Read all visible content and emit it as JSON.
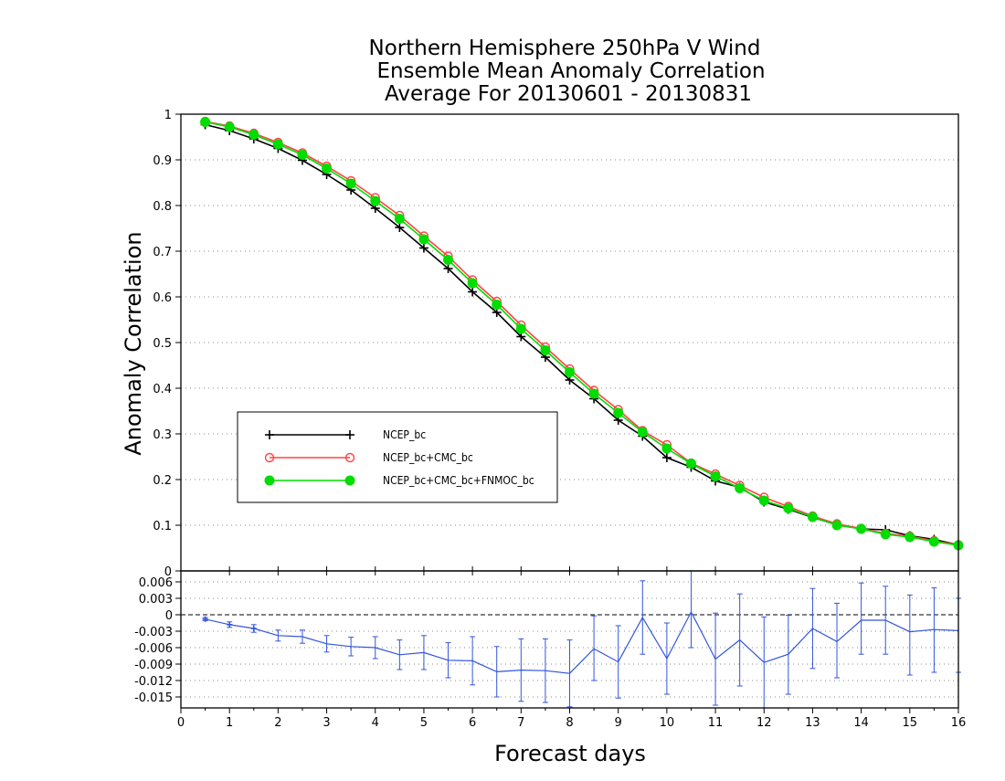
{
  "chart_data": [
    {
      "type": "line",
      "title_lines": [
        "Northern Hemisphere 250hPa V Wind",
        "Ensemble Mean Anomaly Correlation",
        "Average For 20130601 - 20130831"
      ],
      "xlabel": "Forecast days",
      "ylabel": "Anomaly Correlation",
      "xlim": [
        0,
        16
      ],
      "ylim": [
        0,
        1
      ],
      "x_ticks": [
        "0",
        "1",
        "2",
        "3",
        "4",
        "5",
        "6",
        "7",
        "8",
        "9",
        "10",
        "11",
        "12",
        "13",
        "14",
        "15",
        "16"
      ],
      "y_ticks": [
        "0",
        "0.1",
        "0.2",
        "0.3",
        "0.4",
        "0.5",
        "0.6",
        "0.7",
        "0.8",
        "0.9",
        "1"
      ],
      "grid": "horizontal dotted",
      "legend_position": "lower-left",
      "x": [
        0.5,
        1,
        1.5,
        2,
        2.5,
        3,
        3.5,
        4,
        4.5,
        5,
        5.5,
        6,
        6.5,
        7,
        7.5,
        8,
        8.5,
        9,
        9.5,
        10,
        10.5,
        11,
        11.5,
        12,
        12.5,
        13,
        13.5,
        14,
        14.5,
        15,
        15.5,
        16
      ],
      "series": [
        {
          "name": "NCEP_bc",
          "color": "#000000",
          "marker": "plus",
          "values": [
            0.977,
            0.964,
            0.946,
            0.925,
            0.899,
            0.868,
            0.834,
            0.794,
            0.752,
            0.707,
            0.662,
            0.611,
            0.566,
            0.513,
            0.468,
            0.418,
            0.377,
            0.33,
            0.295,
            0.248,
            0.227,
            0.197,
            0.183,
            0.151,
            0.135,
            0.117,
            0.101,
            0.092,
            0.09,
            0.077,
            0.069,
            0.057
          ]
        },
        {
          "name": "NCEP_bc+CMC_bc",
          "color": "#ff4444",
          "marker": "open-circle",
          "values": [
            0.984,
            0.974,
            0.958,
            0.938,
            0.915,
            0.886,
            0.854,
            0.817,
            0.778,
            0.733,
            0.689,
            0.637,
            0.59,
            0.538,
            0.49,
            0.442,
            0.395,
            0.353,
            0.307,
            0.276,
            0.236,
            0.212,
            0.187,
            0.161,
            0.141,
            0.12,
            0.103,
            0.093,
            0.082,
            0.076,
            0.066,
            0.057
          ]
        },
        {
          "name": "NCEP_bc+CMC_bc+FNMOC_bc",
          "color": "#00dd00",
          "marker": "filled-circle",
          "values": [
            0.983,
            0.972,
            0.955,
            0.934,
            0.911,
            0.881,
            0.848,
            0.81,
            0.771,
            0.726,
            0.681,
            0.63,
            0.583,
            0.53,
            0.483,
            0.435,
            0.388,
            0.346,
            0.304,
            0.268,
            0.235,
            0.207,
            0.181,
            0.154,
            0.137,
            0.118,
            0.1,
            0.092,
            0.08,
            0.074,
            0.064,
            0.056
          ]
        }
      ]
    },
    {
      "type": "line",
      "subtype": "difference with error bars",
      "xlim": [
        0,
        16
      ],
      "ylim": [
        -0.017,
        0.008
      ],
      "y_ticks": [
        "0.006",
        "0.003",
        "0",
        "-0.003",
        "-0.006",
        "-0.009",
        "-0.012",
        "-0.015"
      ],
      "grid": "horizontal dotted",
      "zero_line": "dashed",
      "x": [
        0.5,
        1,
        1.5,
        2,
        2.5,
        3,
        3.5,
        4,
        4.5,
        5,
        5.5,
        6,
        6.5,
        7,
        7.5,
        8,
        8.5,
        9,
        9.5,
        10,
        10.5,
        11,
        11.5,
        12,
        12.5,
        13,
        13.5,
        14,
        14.5,
        15,
        15.5,
        16
      ],
      "series": [
        {
          "color": "#3355dd",
          "values": [
            -0.0008,
            -0.0018,
            -0.0025,
            -0.0038,
            -0.004,
            -0.0053,
            -0.0058,
            -0.006,
            -0.0073,
            -0.0069,
            -0.0083,
            -0.0084,
            -0.0104,
            -0.0101,
            -0.0102,
            -0.0107,
            -0.0062,
            -0.0086,
            -0.0005,
            -0.008,
            0.0005,
            -0.0081,
            -0.0046,
            -0.0087,
            -0.0072,
            -0.0025,
            -0.0049,
            -0.001,
            -0.001,
            -0.0031,
            -0.0027,
            -0.0029
          ],
          "lower": [
            -0.0011,
            -0.0023,
            -0.0032,
            -0.0048,
            -0.0052,
            -0.0068,
            -0.0075,
            -0.008,
            -0.01,
            -0.01,
            -0.0115,
            -0.0128,
            -0.015,
            -0.0158,
            -0.016,
            -0.0168,
            -0.012,
            -0.0152,
            -0.0072,
            -0.0145,
            -0.006,
            -0.0165,
            -0.013,
            -0.017,
            -0.0145,
            -0.0098,
            -0.0115,
            -0.0072,
            -0.0072,
            -0.011,
            -0.0105,
            -0.0105
          ],
          "upper": [
            -0.0005,
            -0.0013,
            -0.0018,
            -0.0028,
            -0.0028,
            -0.0038,
            -0.0041,
            -0.004,
            -0.0046,
            -0.0038,
            -0.0051,
            -0.004,
            -0.0058,
            -0.0044,
            -0.0044,
            -0.0046,
            -0.0002,
            -0.002,
            0.0062,
            -0.0015,
            0.008,
            0.0003,
            0.0038,
            -0.0004,
            -0.0001,
            0.0048,
            0.0021,
            0.0058,
            0.0052,
            0.0036,
            0.0049,
            0.003
          ]
        }
      ]
    }
  ]
}
